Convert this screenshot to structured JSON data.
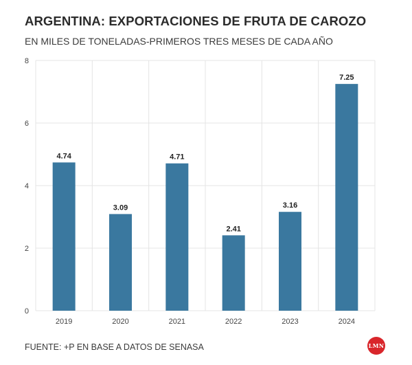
{
  "header": {
    "title": "ARGENTINA: EXPORTACIONES DE FRUTA DE CAROZO",
    "subtitle": "EN MILES DE TONELADAS-PRIMEROS TRES MESES DE CADA AÑO"
  },
  "footer": {
    "source": "FUENTE: +P EN BASE A DATOS DE SENASA",
    "logo_text": "LMN"
  },
  "colors": {
    "bar": "#3a789f",
    "grid": "#e4e4e4",
    "logo": "#d9262b"
  },
  "chart_data": {
    "type": "bar",
    "title": "ARGENTINA: EXPORTACIONES DE FRUTA DE CAROZO",
    "subtitle": "EN MILES DE TONELADAS-PRIMEROS TRES MESES DE CADA AÑO",
    "categories": [
      "2019",
      "2020",
      "2021",
      "2022",
      "2023",
      "2024"
    ],
    "values": [
      4.74,
      3.09,
      4.71,
      2.41,
      3.16,
      7.25
    ],
    "value_labels": [
      "4.74",
      "3.09",
      "4.71",
      "2.41",
      "3.16",
      "7.25"
    ],
    "ylim": [
      0,
      8
    ],
    "yticks": [
      "0",
      "2",
      "4",
      "6",
      "8"
    ],
    "grid": true,
    "legend": "none"
  }
}
